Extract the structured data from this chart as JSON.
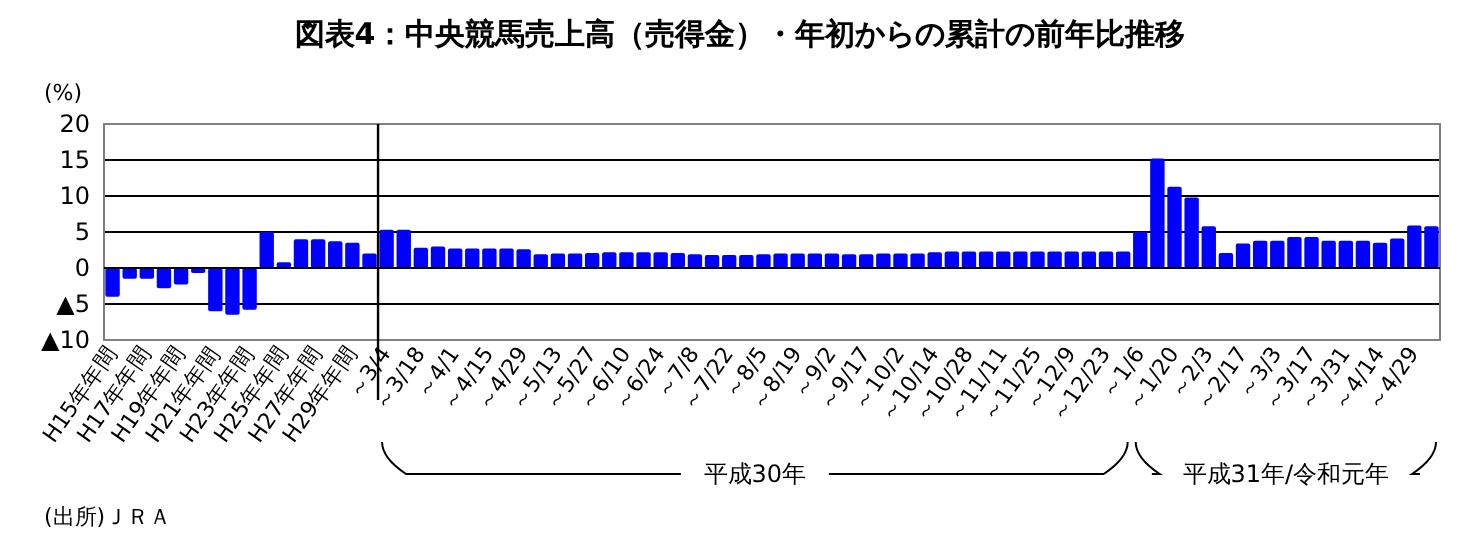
{
  "chart_data": {
    "type": "bar",
    "title": "図表4：中央競馬売上高（売得金）・年初からの累計の前年比推移",
    "ylabel": "(%)",
    "categories": [
      "H15年年間",
      null,
      "H17年年間",
      null,
      "H19年年間",
      null,
      "H21年年間",
      null,
      "H23年年間",
      null,
      "H25年年間",
      null,
      "H27年年間",
      null,
      "H29年年間",
      null,
      "～3/4",
      null,
      "～3/18",
      null,
      "～4/1",
      null,
      "～4/15",
      null,
      "～4/29",
      null,
      "～5/13",
      null,
      "～5/27",
      null,
      "～6/10",
      null,
      "～6/24",
      null,
      "～7/8",
      null,
      "～7/22",
      null,
      "～8/5",
      null,
      "～8/19",
      null,
      "～9/2",
      null,
      "～9/17",
      null,
      "～10/2",
      null,
      "～10/14",
      null,
      "～10/28",
      null,
      "～11/11",
      null,
      "～11/25",
      null,
      "～12/9",
      null,
      "～12/23",
      null,
      "～1/6",
      null,
      "～1/20",
      null,
      "～2/3",
      null,
      "～2/17",
      null,
      "～3/3",
      null,
      "～3/17",
      null,
      "～3/31",
      null,
      "～4/14",
      null,
      "～4/29",
      null
    ],
    "values": [
      -4,
      -1.5,
      -1.5,
      -2.8,
      -2.3,
      -0.7,
      -6,
      -6.5,
      -5.8,
      5,
      0.8,
      4,
      4,
      3.7,
      3.5,
      2,
      5.3,
      5.3,
      2.8,
      3.0,
      2.7,
      2.7,
      2.7,
      2.7,
      2.6,
      1.9,
      2.0,
      2.0,
      2.1,
      2.2,
      2.2,
      2.2,
      2.2,
      2.1,
      1.9,
      1.8,
      1.8,
      1.8,
      1.9,
      2.0,
      2.0,
      2.0,
      2.0,
      1.9,
      1.9,
      2.0,
      2.0,
      2.0,
      2.2,
      2.3,
      2.3,
      2.3,
      2.3,
      2.3,
      2.3,
      2.3,
      2.3,
      2.3,
      2.3,
      2.3,
      5.0,
      15.2,
      11.3,
      9.8,
      5.8,
      2.1,
      3.4,
      3.8,
      3.8,
      4.3,
      4.3,
      3.8,
      3.8,
      3.8,
      3.5,
      4.1,
      5.9,
      5.8
    ],
    "color": "#0000ff",
    "ylim": [
      -10,
      20
    ],
    "yticks": [
      {
        "value": -10,
        "label": "▲10"
      },
      {
        "value": -5,
        "label": "▲5"
      },
      0,
      5,
      10,
      15,
      20
    ],
    "grid": "y",
    "ref_lines": [
      {
        "axis": "x",
        "value": "～3/4",
        "color": "#000000"
      }
    ],
    "annotations": [
      "平成30年",
      "平成31年/令和元年",
      "(出所)ＪＲＡ"
    ]
  }
}
